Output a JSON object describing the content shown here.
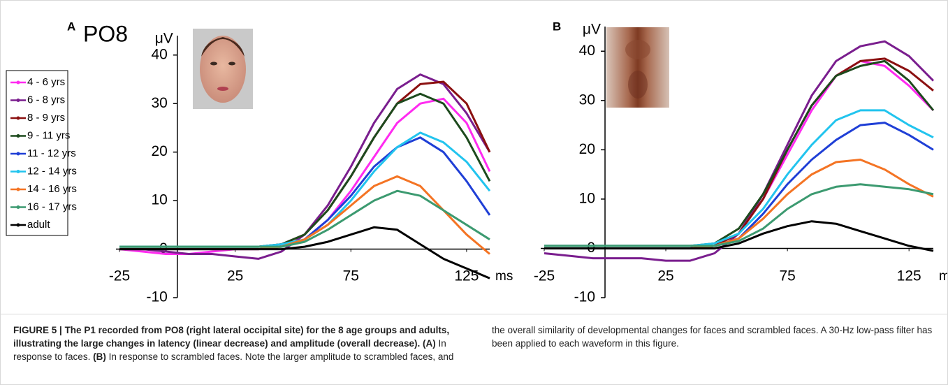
{
  "chart_data": [
    {
      "type": "line",
      "panel": "A",
      "title": "PO8",
      "y_label": "μV",
      "x_label": "ms",
      "legend": true,
      "x": [
        -25,
        -15,
        -5,
        5,
        15,
        25,
        35,
        45,
        55,
        65,
        75,
        85,
        95,
        105,
        115,
        125,
        135
      ],
      "xlim": [
        -25,
        135
      ],
      "ylim": [
        -10,
        44
      ],
      "xticks": [
        -25,
        25,
        75,
        125
      ],
      "yticks": [
        -10,
        0,
        10,
        20,
        30,
        40
      ],
      "series": [
        {
          "name": "4 - 6 yrs",
          "color": "#ff2bf0",
          "values": [
            0,
            -0.5,
            -1,
            -1,
            -0.5,
            0,
            0,
            0.5,
            2,
            6,
            12,
            19,
            26,
            30,
            31,
            26,
            16
          ]
        },
        {
          "name": "6 - 8 yrs",
          "color": "#7a1e8e",
          "values": [
            0,
            0,
            -0.5,
            -1,
            -1,
            -1.5,
            -2,
            -0.5,
            3,
            9,
            17,
            26,
            33,
            36,
            34,
            28,
            20
          ]
        },
        {
          "name": "8 - 9 yrs",
          "color": "#8b1010",
          "values": [
            0.5,
            0.5,
            0.5,
            0.5,
            0.5,
            0.5,
            0.5,
            1,
            3,
            8,
            15,
            23,
            30,
            34,
            34.5,
            30,
            20
          ]
        },
        {
          "name": "9 - 11 yrs",
          "color": "#1d4a1d",
          "values": [
            0.5,
            0.5,
            0.5,
            0.5,
            0.5,
            0.5,
            0.5,
            1,
            3,
            8,
            15,
            23,
            30,
            32,
            30,
            23,
            14
          ]
        },
        {
          "name": "11 - 12 yrs",
          "color": "#1f3fd6",
          "values": [
            0,
            0,
            0,
            0,
            0,
            0,
            0,
            0.5,
            2,
            6,
            11,
            17,
            21,
            23,
            20,
            14,
            7
          ]
        },
        {
          "name": "12 - 14 yrs",
          "color": "#22c4ee",
          "values": [
            0.5,
            0.5,
            0.5,
            0.5,
            0.5,
            0.5,
            0.5,
            1,
            2,
            5,
            10,
            16,
            21,
            24,
            22,
            18,
            12
          ]
        },
        {
          "name": "14 - 16 yrs",
          "color": "#f47424",
          "values": [
            0,
            0,
            0,
            0,
            0,
            0,
            0,
            0.5,
            2,
            5,
            9,
            13,
            15,
            13,
            8,
            3,
            -1
          ]
        },
        {
          "name": "16 - 17 yrs",
          "color": "#3c9a70",
          "values": [
            0.5,
            0.5,
            0.5,
            0.5,
            0.5,
            0.5,
            0.5,
            0.5,
            1.5,
            4,
            7,
            10,
            12,
            11,
            8,
            5,
            2
          ]
        },
        {
          "name": "adult",
          "color": "#000000",
          "values": [
            0,
            0,
            0,
            0,
            0,
            0,
            0,
            0,
            0.5,
            1.5,
            3,
            4.5,
            4,
            1,
            -2,
            -4,
            -6
          ]
        }
      ]
    },
    {
      "type": "line",
      "panel": "B",
      "y_label": "μV",
      "x_label": "ms",
      "legend": false,
      "x": [
        -25,
        -15,
        -5,
        5,
        15,
        25,
        35,
        45,
        55,
        65,
        75,
        85,
        95,
        105,
        115,
        125,
        135
      ],
      "xlim": [
        -25,
        135
      ],
      "ylim": [
        -10,
        45
      ],
      "xticks": [
        -25,
        25,
        75,
        125
      ],
      "yticks": [
        -10,
        0,
        10,
        20,
        30,
        40
      ],
      "series": [
        {
          "color": "#ff2bf0",
          "values": [
            0,
            0,
            0,
            0,
            0,
            0,
            0,
            0.5,
            3,
            10,
            19,
            28,
            35,
            38,
            37,
            33,
            28
          ]
        },
        {
          "color": "#7a1e8e",
          "values": [
            -1,
            -1.5,
            -2,
            -2,
            -2,
            -2.5,
            -2.5,
            -1,
            3,
            11,
            21,
            31,
            38,
            41,
            42,
            39,
            34
          ]
        },
        {
          "color": "#8b1010",
          "values": [
            0,
            0,
            0,
            0,
            0,
            0,
            0,
            0.5,
            3,
            10,
            20,
            29,
            35,
            38,
            38.5,
            36,
            32
          ]
        },
        {
          "color": "#1d4a1d",
          "values": [
            0.5,
            0.5,
            0.5,
            0.5,
            0.5,
            0.5,
            0.5,
            1,
            4,
            11,
            20,
            29,
            35,
            37,
            38,
            34,
            28
          ]
        },
        {
          "color": "#1f3fd6",
          "values": [
            0,
            0,
            0,
            0,
            0,
            0,
            0,
            0.5,
            2,
            7,
            13,
            18,
            22,
            25,
            25.5,
            23,
            20
          ]
        },
        {
          "color": "#22c4ee",
          "values": [
            0.5,
            0.5,
            0.5,
            0.5,
            0.5,
            0.5,
            0.5,
            1,
            3,
            8,
            15,
            21,
            26,
            28,
            28,
            25,
            22.5
          ]
        },
        {
          "color": "#f47424",
          "values": [
            0,
            0,
            0,
            0,
            0,
            0,
            0,
            0.5,
            2,
            6,
            11,
            15,
            17.5,
            18,
            16,
            13,
            10.5
          ]
        },
        {
          "color": "#3c9a70",
          "values": [
            0.5,
            0.5,
            0.5,
            0.5,
            0.5,
            0.5,
            0.5,
            0.5,
            1.5,
            4,
            8,
            11,
            12.5,
            13,
            12.5,
            12,
            11
          ]
        },
        {
          "color": "#000000",
          "values": [
            0,
            0,
            0,
            0,
            0,
            0,
            0,
            0,
            1,
            3,
            4.5,
            5.5,
            5,
            3.5,
            2,
            0.5,
            -0.5
          ]
        }
      ]
    }
  ],
  "caption": {
    "label": "FIGURE 5 |",
    "title": "The P1 recorded from PO8 (right lateral occipital site) for the 8 age groups and adults, illustrating the large changes in latency (linear decrease) and amplitude (overall decrease).",
    "key_a": "(A)",
    "text_a": "In response to faces.",
    "key_b": "(B)",
    "text_b": "In response to scrambled faces. Note the larger amplitude to scrambled faces, and the overall similarity of developmental changes for faces and scrambled faces. A 30-Hz low-pass filter has been applied to each waveform in this figure."
  }
}
